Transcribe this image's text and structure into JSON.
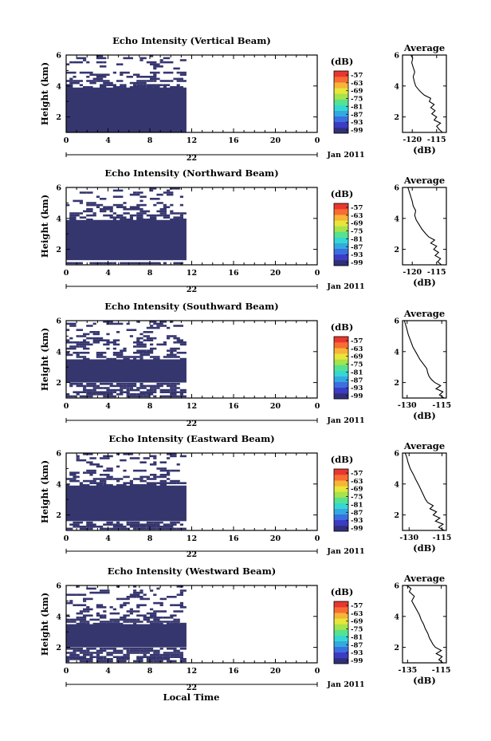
{
  "figure": {
    "xlabel": "Local Time",
    "x_date_label": "Jan 2011",
    "x_date_tick": "22",
    "colorbar_unit": "(dB)",
    "colorbar_ticks": [
      "-57",
      "-63",
      "-69",
      "-75",
      "-81",
      "-87",
      "-93",
      "-99"
    ],
    "colormap": [
      "#30307a",
      "#3b3bc4",
      "#3b6fe0",
      "#34a9e0",
      "#35d7d2",
      "#57e28f",
      "#a6e34d",
      "#e8e63b",
      "#f7b437",
      "#f76d33",
      "#e8372e"
    ],
    "profile_title": "Average",
    "profile_xlabel": "(dB)"
  },
  "chart_data": [
    {
      "type": "heatmap",
      "title": "Echo Intensity (Vertical Beam)",
      "ylabel": "Height (km)",
      "xlim": [
        0,
        24
      ],
      "xticks": [
        "0",
        "4",
        "8",
        "12",
        "16",
        "20",
        "0"
      ],
      "ylim": [
        1,
        6
      ],
      "yticks": [
        "2",
        "4",
        "6"
      ],
      "cell_color": "#36366f",
      "data_coverage_hours": [
        0,
        11.5
      ],
      "solid_layer_km": [
        1.0,
        3.9
      ],
      "profile": {
        "xlim": [
          -122,
          -113
        ],
        "xticks": [
          "-120",
          "-115"
        ],
        "ylim": [
          1,
          6
        ],
        "yticks": [
          "2",
          "4",
          "6"
        ],
        "points": [
          [
            -113.8,
            1.0
          ],
          [
            -114.5,
            1.2
          ],
          [
            -115.0,
            1.4
          ],
          [
            -114.2,
            1.6
          ],
          [
            -115.5,
            1.8
          ],
          [
            -115.0,
            2.0
          ],
          [
            -116.0,
            2.2
          ],
          [
            -115.3,
            2.4
          ],
          [
            -116.2,
            2.6
          ],
          [
            -115.5,
            2.8
          ],
          [
            -116.5,
            3.0
          ],
          [
            -116.2,
            3.2
          ],
          [
            -117.5,
            3.4
          ],
          [
            -118.2,
            3.6
          ],
          [
            -118.8,
            3.8
          ],
          [
            -119.3,
            4.0
          ],
          [
            -119.6,
            4.3
          ],
          [
            -119.8,
            4.6
          ],
          [
            -119.5,
            4.9
          ],
          [
            -119.8,
            5.2
          ],
          [
            -120.1,
            5.5
          ],
          [
            -119.9,
            5.8
          ],
          [
            -120.3,
            6.0
          ]
        ]
      }
    },
    {
      "type": "heatmap",
      "title": "Echo Intensity (Northward Beam)",
      "ylabel": "Height (km)",
      "xlim": [
        0,
        24
      ],
      "xticks": [
        "0",
        "4",
        "8",
        "12",
        "16",
        "20",
        "0"
      ],
      "ylim": [
        1,
        6
      ],
      "yticks": [
        "2",
        "4",
        "6"
      ],
      "cell_color": "#36366f",
      "data_coverage_hours": [
        0,
        11.5
      ],
      "solid_layer_km": [
        1.3,
        3.9
      ],
      "profile": {
        "xlim": [
          -122,
          -113
        ],
        "xticks": [
          "-120",
          "-115"
        ],
        "ylim": [
          1,
          6
        ],
        "yticks": [
          "2",
          "4",
          "6"
        ],
        "points": [
          [
            -114.0,
            1.0
          ],
          [
            -114.8,
            1.2
          ],
          [
            -114.2,
            1.4
          ],
          [
            -115.3,
            1.6
          ],
          [
            -114.6,
            1.8
          ],
          [
            -115.6,
            2.0
          ],
          [
            -115.0,
            2.2
          ],
          [
            -116.2,
            2.4
          ],
          [
            -115.4,
            2.6
          ],
          [
            -116.6,
            2.8
          ],
          [
            -117.2,
            3.0
          ],
          [
            -118.0,
            3.3
          ],
          [
            -118.6,
            3.6
          ],
          [
            -119.2,
            3.9
          ],
          [
            -119.5,
            4.2
          ],
          [
            -119.3,
            4.5
          ],
          [
            -119.8,
            4.8
          ],
          [
            -120.0,
            5.1
          ],
          [
            -120.3,
            5.4
          ],
          [
            -120.6,
            5.7
          ],
          [
            -120.9,
            6.0
          ]
        ]
      }
    },
    {
      "type": "heatmap",
      "title": "Echo Intensity (Southward Beam)",
      "ylabel": "Height (km)",
      "xlim": [
        0,
        24
      ],
      "xticks": [
        "0",
        "4",
        "8",
        "12",
        "16",
        "20",
        "0"
      ],
      "ylim": [
        1,
        6
      ],
      "yticks": [
        "2",
        "4",
        "6"
      ],
      "cell_color": "#36366f",
      "data_coverage_hours": [
        0,
        11.5
      ],
      "solid_layer_km": [
        2.0,
        3.5
      ],
      "profile": {
        "xlim": [
          -132,
          -113
        ],
        "xticks": [
          "-130",
          "-115"
        ],
        "ylim": [
          1,
          6
        ],
        "yticks": [
          "2",
          "4",
          "6"
        ],
        "points": [
          [
            -114.0,
            1.0
          ],
          [
            -116.0,
            1.2
          ],
          [
            -114.5,
            1.4
          ],
          [
            -117.5,
            1.6
          ],
          [
            -115.5,
            1.8
          ],
          [
            -118.0,
            2.0
          ],
          [
            -119.5,
            2.2
          ],
          [
            -120.5,
            2.4
          ],
          [
            -121.0,
            2.6
          ],
          [
            -121.5,
            2.9
          ],
          [
            -123.0,
            3.2
          ],
          [
            -124.5,
            3.5
          ],
          [
            -126.0,
            3.9
          ],
          [
            -127.5,
            4.3
          ],
          [
            -128.5,
            4.7
          ],
          [
            -129.5,
            5.1
          ],
          [
            -130.2,
            5.5
          ],
          [
            -130.8,
            5.8
          ],
          [
            -131.2,
            6.0
          ]
        ]
      }
    },
    {
      "type": "heatmap",
      "title": "Echo Intensity (Eastward Beam)",
      "ylabel": "Height (km)",
      "xlim": [
        0,
        24
      ],
      "xticks": [
        "0",
        "4",
        "8",
        "12",
        "16",
        "20",
        "0"
      ],
      "ylim": [
        1,
        6
      ],
      "yticks": [
        "2",
        "4",
        "6"
      ],
      "cell_color": "#36366f",
      "data_coverage_hours": [
        0,
        11.5
      ],
      "solid_layer_km": [
        1.6,
        3.9
      ],
      "profile": {
        "xlim": [
          -133,
          -113
        ],
        "xticks": [
          "-130",
          "-115"
        ],
        "ylim": [
          1,
          6
        ],
        "yticks": [
          "2",
          "4",
          "6"
        ],
        "points": [
          [
            -114.0,
            1.0
          ],
          [
            -116.5,
            1.2
          ],
          [
            -114.5,
            1.4
          ],
          [
            -118.0,
            1.6
          ],
          [
            -116.0,
            1.8
          ],
          [
            -119.0,
            2.0
          ],
          [
            -117.5,
            2.2
          ],
          [
            -120.5,
            2.4
          ],
          [
            -119.0,
            2.6
          ],
          [
            -121.5,
            2.8
          ],
          [
            -122.5,
            3.0
          ],
          [
            -123.5,
            3.3
          ],
          [
            -124.5,
            3.6
          ],
          [
            -125.5,
            3.9
          ],
          [
            -127.0,
            4.3
          ],
          [
            -128.0,
            4.6
          ],
          [
            -129.5,
            5.0
          ],
          [
            -130.5,
            5.4
          ],
          [
            -131.0,
            5.7
          ],
          [
            -131.8,
            6.0
          ]
        ]
      }
    },
    {
      "type": "heatmap",
      "title": "Echo Intensity (Westward Beam)",
      "ylabel": "Height (km)",
      "xlim": [
        0,
        24
      ],
      "xticks": [
        "0",
        "4",
        "8",
        "12",
        "16",
        "20",
        "0"
      ],
      "ylim": [
        1,
        6
      ],
      "yticks": [
        "2",
        "4",
        "6"
      ],
      "cell_color": "#36366f",
      "data_coverage_hours": [
        0,
        11.5
      ],
      "solid_layer_km": [
        2.0,
        3.5
      ],
      "profile": {
        "xlim": [
          -138,
          -112
        ],
        "xticks": [
          "-135",
          "-115"
        ],
        "ylim": [
          1,
          6
        ],
        "yticks": [
          "2",
          "4",
          "6"
        ],
        "points": [
          [
            -114.0,
            1.0
          ],
          [
            -116.5,
            1.2
          ],
          [
            -114.5,
            1.4
          ],
          [
            -118.0,
            1.6
          ],
          [
            -115.0,
            1.8
          ],
          [
            -118.5,
            2.0
          ],
          [
            -120.0,
            2.2
          ],
          [
            -121.0,
            2.4
          ],
          [
            -122.0,
            2.6
          ],
          [
            -123.0,
            2.9
          ],
          [
            -124.5,
            3.2
          ],
          [
            -125.5,
            3.5
          ],
          [
            -127.0,
            3.8
          ],
          [
            -128.0,
            4.1
          ],
          [
            -129.5,
            4.4
          ],
          [
            -131.0,
            4.7
          ],
          [
            -132.5,
            5.0
          ],
          [
            -131.0,
            5.3
          ],
          [
            -134.0,
            5.6
          ],
          [
            -133.0,
            5.8
          ],
          [
            -135.5,
            6.0
          ]
        ]
      }
    }
  ]
}
